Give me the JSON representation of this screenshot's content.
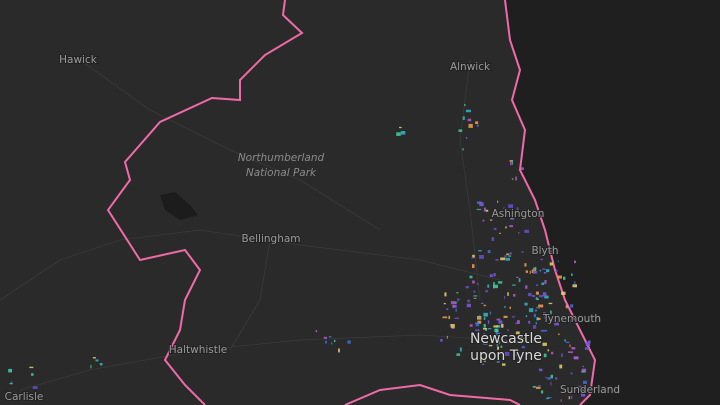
{
  "map": {
    "labels": [
      {
        "text": "Hawick"
      },
      {
        "text": "Alnwick"
      },
      {
        "lines": [
          "Northumberland",
          "National Park"
        ]
      },
      {
        "text": "Bellingham"
      },
      {
        "text": "Ashington"
      },
      {
        "text": "Blyth"
      },
      {
        "text": "Tynemouth"
      },
      {
        "lines": [
          "Newcastle",
          "upon Tyne"
        ]
      },
      {
        "text": "Haltwhistle"
      },
      {
        "text": "Carlisle"
      },
      {
        "text": "Sunderland"
      }
    ]
  }
}
